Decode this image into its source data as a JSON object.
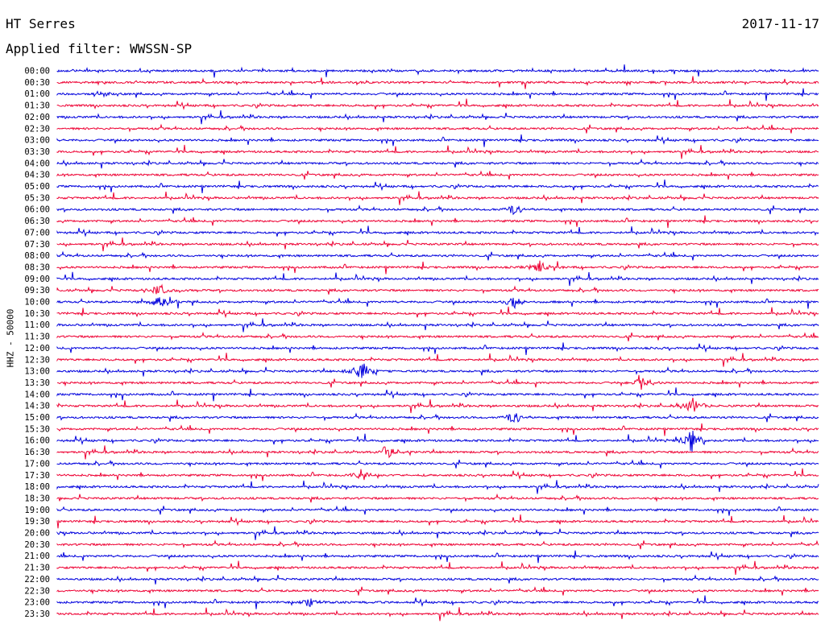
{
  "header": {
    "station": "HT Serres",
    "date": "2017-11-17",
    "filter": "Applied filter: WWSSN-SP"
  },
  "chart_data": {
    "type": "line",
    "title": "HT Serres",
    "ylabel": "HHZ - 50000",
    "colors": [
      "#0000dd",
      "#ee0033"
    ],
    "row_times": [
      "00:00",
      "00:30",
      "01:00",
      "01:30",
      "02:00",
      "02:30",
      "03:00",
      "03:30",
      "04:00",
      "04:30",
      "05:00",
      "05:30",
      "06:00",
      "06:30",
      "07:00",
      "07:30",
      "08:00",
      "08:30",
      "09:00",
      "09:30",
      "10:00",
      "10:30",
      "11:00",
      "11:30",
      "12:00",
      "12:30",
      "13:00",
      "13:30",
      "14:00",
      "14:30",
      "15:00",
      "15:30",
      "16:00",
      "16:30",
      "17:00",
      "17:30",
      "18:00",
      "18:30",
      "19:00",
      "19:30",
      "20:00",
      "20:30",
      "21:00",
      "21:30",
      "22:00",
      "22:30",
      "23:00",
      "23:30"
    ],
    "events": [
      {
        "time": "09:30",
        "minute": 4,
        "amplitude": 0.7
      },
      {
        "time": "10:00",
        "minute": 4,
        "amplitude": 0.6
      },
      {
        "time": "10:00",
        "minute": 18,
        "amplitude": 0.6
      },
      {
        "time": "13:00",
        "minute": 12,
        "amplitude": 0.9
      },
      {
        "time": "13:30",
        "minute": 23,
        "amplitude": 0.7
      },
      {
        "time": "14:30",
        "minute": 25,
        "amplitude": 1.0
      },
      {
        "time": "15:00",
        "minute": 18,
        "amplitude": 0.6
      },
      {
        "time": "16:00",
        "minute": 25,
        "amplitude": 1.0
      },
      {
        "time": "16:30",
        "minute": 13,
        "amplitude": 0.7
      },
      {
        "time": "17:30",
        "minute": 12,
        "amplitude": 0.5
      },
      {
        "time": "06:00",
        "minute": 18,
        "amplitude": 0.5
      },
      {
        "time": "08:30",
        "minute": 19,
        "amplitude": 0.6
      },
      {
        "time": "23:00",
        "minute": 10,
        "amplitude": 0.5
      }
    ]
  }
}
